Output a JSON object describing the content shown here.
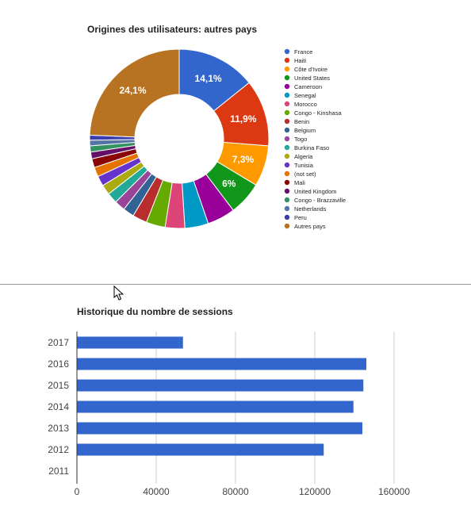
{
  "chart_data": [
    {
      "type": "pie",
      "title": "Origines des utilisateurs: autres pays",
      "donut": true,
      "legend_position": "right",
      "slices": [
        {
          "label": "France",
          "value": 14.1,
          "display": "14,1%",
          "color": "#3366cc"
        },
        {
          "label": "Haiti",
          "value": 11.9,
          "display": "11,9%",
          "color": "#dc3912"
        },
        {
          "label": "Côte d’Ivoire",
          "value": 7.3,
          "display": "7,3%",
          "color": "#ff9900"
        },
        {
          "label": "United States",
          "value": 6.0,
          "display": "6%",
          "color": "#109618"
        },
        {
          "label": "Cameroon",
          "value": 5.0,
          "display": "",
          "color": "#990099"
        },
        {
          "label": "Senegal",
          "value": 4.2,
          "display": "",
          "color": "#0099c6"
        },
        {
          "label": "Morocco",
          "value": 3.5,
          "display": "",
          "color": "#dd4477"
        },
        {
          "label": "Congo - Kinshasa",
          "value": 3.4,
          "display": "",
          "color": "#66aa00"
        },
        {
          "label": "Benin",
          "value": 2.6,
          "display": "",
          "color": "#b82e2e"
        },
        {
          "label": "Belgium",
          "value": 2.0,
          "display": "",
          "color": "#316395"
        },
        {
          "label": "Togo",
          "value": 1.9,
          "display": "",
          "color": "#994499"
        },
        {
          "label": "Burkina Faso",
          "value": 1.9,
          "display": "",
          "color": "#22aa99"
        },
        {
          "label": "Algeria",
          "value": 1.8,
          "display": "",
          "color": "#aaaa11"
        },
        {
          "label": "Tunisia",
          "value": 1.8,
          "display": "",
          "color": "#6633cc"
        },
        {
          "label": "(not set)",
          "value": 1.7,
          "display": "",
          "color": "#e67300"
        },
        {
          "label": "Mali",
          "value": 1.6,
          "display": "",
          "color": "#8b0707"
        },
        {
          "label": "United Kingdom",
          "value": 1.2,
          "display": "",
          "color": "#651067"
        },
        {
          "label": "Congo - Brazzaville",
          "value": 1.1,
          "display": "",
          "color": "#329262"
        },
        {
          "label": "Netherlands",
          "value": 1.0,
          "display": "",
          "color": "#5574a6"
        },
        {
          "label": "Peru",
          "value": 0.9,
          "display": "",
          "color": "#3b3eac"
        },
        {
          "label": "Autres pays",
          "value": 24.1,
          "display": "24,1%",
          "color": "#b77322"
        }
      ]
    },
    {
      "type": "bar",
      "orientation": "horizontal",
      "title": "Historique du nombre de sessions",
      "categories": [
        "2017",
        "2016",
        "2015",
        "2014",
        "2013",
        "2012",
        "2011"
      ],
      "values": [
        53500,
        146000,
        144500,
        139500,
        144000,
        124500,
        0
      ],
      "xlim": [
        0,
        180000
      ],
      "xticks": [
        0,
        40000,
        80000,
        120000,
        160000
      ],
      "xtick_labels": [
        "0",
        "40000",
        "80000",
        "120000",
        "160000"
      ],
      "bar_color": "#3366cc",
      "grid": true
    }
  ]
}
